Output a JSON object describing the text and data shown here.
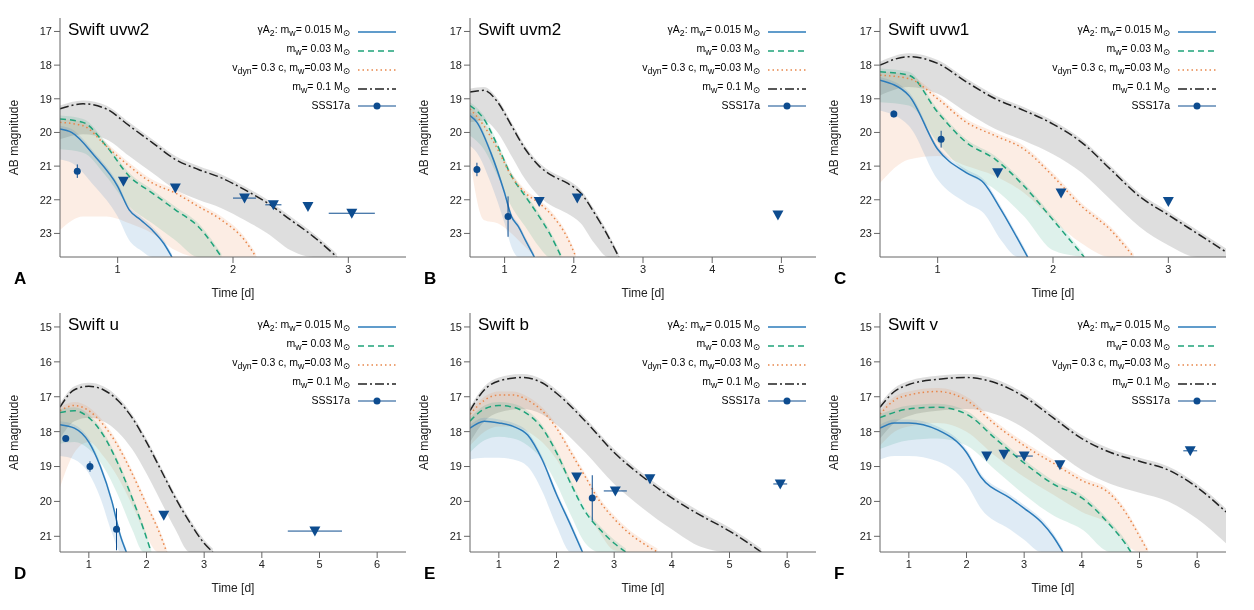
{
  "chart_data": [
    {
      "type": "line",
      "title": "Swift uvw2",
      "xlabel": "Time [d]",
      "ylabel": "AB magnitude",
      "xlim": [
        0.5,
        3.5
      ],
      "xticks": [
        1,
        2,
        3
      ],
      "ylim": [
        23.7,
        16.6
      ],
      "yticks": [
        17,
        18,
        19,
        20,
        21,
        22,
        23
      ],
      "legend": "top right",
      "annotations": [
        "A"
      ],
      "series": [
        {
          "type": "line",
          "name": "γA$_{2}$: m$_{w}$= 0.015 M$_{⊙}$",
          "color": "#2b7bba",
          "line_style": "solid",
          "marker": "none",
          "x": [
            0.5,
            0.6,
            0.8,
            1.0,
            1.1,
            1.2,
            1.3,
            1.4,
            1.47
          ],
          "values": [
            19.9,
            20.0,
            20.7,
            21.6,
            22.3,
            22.6,
            22.9,
            23.3,
            23.7
          ],
          "lower": [
            19.8,
            19.9,
            20.6,
            21.5,
            22.2,
            22.5,
            22.8,
            23.2,
            23.6
          ],
          "upper": [
            20.8,
            20.9,
            21.6,
            22.5,
            23.2,
            23.5,
            23.7,
            23.7,
            23.7
          ]
        },
        {
          "type": "line",
          "name": "m$_{w}$= 0.03 M$_{⊙}$",
          "color": "#1fa37a",
          "line_style": "dashed",
          "marker": "none",
          "x": [
            0.5,
            0.7,
            0.9,
            1.1,
            1.3,
            1.5,
            1.7,
            1.9
          ],
          "values": [
            19.6,
            19.7,
            20.4,
            21.3,
            21.8,
            22.3,
            22.8,
            23.7
          ],
          "lower": [
            19.5,
            19.6,
            20.3,
            21.2,
            21.7,
            22.2,
            22.7,
            23.6
          ],
          "upper": [
            20.5,
            20.6,
            21.3,
            22.2,
            22.7,
            23.2,
            23.7,
            23.7
          ]
        },
        {
          "type": "line",
          "name": "v$_{dyn}$= 0.3 c, m$_{w}$=0.03 M$_{⊙}$",
          "color": "#e8864a",
          "line_style": "dotted",
          "marker": "none",
          "x": [
            0.5,
            0.7,
            0.9,
            1.1,
            1.3,
            1.5,
            1.7,
            1.9,
            2.1,
            2.2
          ],
          "values": [
            19.7,
            19.8,
            20.4,
            21.0,
            21.5,
            21.8,
            22.2,
            22.6,
            23.2,
            23.7
          ],
          "lower": [
            19.6,
            19.7,
            20.3,
            20.9,
            21.4,
            21.7,
            22.1,
            22.5,
            23.1,
            23.6
          ],
          "upper": [
            22.9,
            22.5,
            22.5,
            22.7,
            23.0,
            23.5,
            23.7,
            23.7,
            23.7,
            23.7
          ]
        },
        {
          "type": "line",
          "name": "m$_{w}$= 0.1 M$_{⊙}$",
          "color": "#222222",
          "line_style": "dashdot",
          "marker": "none",
          "x": [
            0.5,
            0.7,
            0.9,
            1.1,
            1.3,
            1.5,
            1.7,
            1.9,
            2.1,
            2.3,
            2.5,
            2.7,
            2.9
          ],
          "values": [
            19.3,
            19.15,
            19.3,
            19.8,
            20.3,
            20.8,
            21.1,
            21.35,
            21.7,
            22.1,
            22.6,
            23.1,
            23.7
          ],
          "lower": [
            19.2,
            19.05,
            19.2,
            19.7,
            20.2,
            20.7,
            21.0,
            21.25,
            21.6,
            22.0,
            22.5,
            23.0,
            23.6
          ],
          "upper": [
            20.2,
            20.05,
            20.2,
            20.7,
            21.2,
            21.7,
            22.0,
            22.25,
            22.6,
            23.0,
            23.5,
            23.7,
            23.7
          ]
        },
        {
          "type": "scatter",
          "name": "SSS17a",
          "color": "#0d4c8f",
          "marker": "circle",
          "x": [
            0.65
          ],
          "values": [
            21.15
          ],
          "errors": [
            0.2
          ]
        },
        {
          "type": "scatter",
          "color": "#0d4c8f",
          "marker": "triangle",
          "x": [
            1.05,
            1.5,
            2.1,
            2.35,
            2.65,
            3.03
          ],
          "values": [
            21.45,
            21.65,
            21.95,
            22.15,
            22.2,
            22.4
          ],
          "xerrors": [
            null,
            null,
            0.1,
            0.07,
            null,
            0.2
          ]
        }
      ]
    },
    {
      "type": "line",
      "title": "Swift uvm2",
      "xlabel": "Time [d]",
      "ylabel": "AB magnitude",
      "xlim": [
        0.5,
        5.5
      ],
      "xticks": [
        1,
        2,
        3,
        4,
        5
      ],
      "ylim": [
        23.7,
        16.6
      ],
      "yticks": [
        17,
        18,
        19,
        20,
        21,
        22,
        23
      ],
      "legend": "top right",
      "annotations": [
        "B"
      ],
      "series": [
        {
          "type": "line",
          "name": "γA$_{2}$: m$_{w}$= 0.015 M$_{⊙}$",
          "color": "#2b7bba",
          "line_style": "solid",
          "marker": "none",
          "x": [
            0.5,
            0.6,
            0.8,
            1.0,
            1.1,
            1.2,
            1.3,
            1.43
          ],
          "values": [
            19.5,
            19.7,
            20.6,
            21.8,
            22.5,
            22.8,
            23.2,
            23.7
          ],
          "lower": [
            19.4,
            19.6,
            20.5,
            21.7,
            22.4,
            22.7,
            23.1,
            23.6
          ],
          "upper": [
            20.4,
            20.6,
            21.5,
            22.7,
            23.4,
            23.7,
            23.7,
            23.7
          ]
        },
        {
          "type": "line",
          "name": "m$_{w}$= 0.03 M$_{⊙}$",
          "color": "#1fa37a",
          "line_style": "dashed",
          "marker": "none",
          "x": [
            0.5,
            0.7,
            0.9,
            1.1,
            1.3,
            1.5,
            1.65,
            1.82
          ],
          "values": [
            19.2,
            19.6,
            20.4,
            21.3,
            21.9,
            22.5,
            23.0,
            23.7
          ],
          "lower": [
            19.1,
            19.5,
            20.3,
            21.2,
            21.8,
            22.4,
            22.9,
            23.6
          ],
          "upper": [
            20.1,
            20.5,
            21.3,
            22.2,
            22.8,
            23.4,
            23.7,
            23.7
          ]
        },
        {
          "type": "line",
          "name": "v$_{dyn}$= 0.3 c, m$_{w}$=0.03 M$_{⊙}$",
          "color": "#e8864a",
          "line_style": "dotted",
          "marker": "none",
          "x": [
            0.5,
            0.7,
            0.9,
            1.1,
            1.3,
            1.5,
            1.7,
            1.9,
            2.03
          ],
          "values": [
            19.3,
            19.8,
            20.5,
            21.3,
            21.8,
            22.1,
            22.5,
            23.1,
            23.7
          ],
          "lower": [
            19.2,
            19.7,
            20.4,
            21.2,
            21.7,
            22.0,
            22.4,
            23.0,
            23.6
          ],
          "upper": [
            20.8,
            22.6,
            22.7,
            23.0,
            23.4,
            23.7,
            23.7,
            23.7,
            23.7
          ]
        },
        {
          "type": "line",
          "name": "m$_{w}$= 0.1 M$_{⊙}$",
          "color": "#222222",
          "line_style": "dashdot",
          "marker": "none",
          "x": [
            0.5,
            0.7,
            0.9,
            1.1,
            1.3,
            1.5,
            1.7,
            1.9,
            2.1,
            2.3,
            2.5,
            2.65
          ],
          "values": [
            18.8,
            18.75,
            19.1,
            19.8,
            20.5,
            21.0,
            21.3,
            21.5,
            21.8,
            22.4,
            23.1,
            23.7
          ],
          "lower": [
            18.7,
            18.65,
            19.0,
            19.7,
            20.4,
            20.9,
            21.2,
            21.4,
            21.7,
            22.3,
            23.0,
            23.6
          ],
          "upper": [
            19.7,
            19.65,
            20.0,
            20.7,
            21.4,
            21.9,
            22.2,
            22.4,
            22.7,
            23.3,
            23.7,
            23.7
          ]
        },
        {
          "type": "scatter",
          "name": "SSS17a",
          "color": "#0d4c8f",
          "marker": "circle",
          "x": [
            0.6,
            1.05
          ],
          "values": [
            21.1,
            22.5
          ],
          "errors": [
            0.2,
            0.6
          ]
        },
        {
          "type": "scatter",
          "color": "#0d4c8f",
          "marker": "triangle",
          "x": [
            1.5,
            2.05,
            4.95
          ],
          "values": [
            22.05,
            21.95,
            22.45
          ]
        }
      ]
    },
    {
      "type": "line",
      "title": "Swift uvw1",
      "xlabel": "Time [d]",
      "ylabel": "AB magnitude",
      "xlim": [
        0.5,
        3.5
      ],
      "xticks": [
        1,
        2,
        3
      ],
      "ylim": [
        23.7,
        16.6
      ],
      "yticks": [
        17,
        18,
        19,
        20,
        21,
        22,
        23
      ],
      "legend": "top right",
      "annotations": [
        "C"
      ],
      "series": [
        {
          "type": "line",
          "name": "γA$_{2}$: m$_{w}$= 0.015 M$_{⊙}$",
          "color": "#2b7bba",
          "line_style": "solid",
          "marker": "none",
          "x": [
            0.5,
            0.75,
            1.0,
            1.25,
            1.4,
            1.55,
            1.7,
            1.78
          ],
          "values": [
            18.45,
            18.9,
            20.5,
            21.2,
            21.5,
            22.3,
            23.2,
            23.7
          ],
          "lower": [
            18.35,
            18.8,
            20.4,
            21.1,
            21.4,
            22.2,
            23.1,
            23.6
          ],
          "upper": [
            19.35,
            19.8,
            21.4,
            22.1,
            22.4,
            23.2,
            23.7,
            23.7
          ]
        },
        {
          "type": "line",
          "name": "m$_{w}$= 0.03 M$_{⊙}$",
          "color": "#1fa37a",
          "line_style": "dashed",
          "marker": "none",
          "x": [
            0.5,
            0.75,
            1.0,
            1.25,
            1.5,
            1.75,
            2.0,
            2.27
          ],
          "values": [
            18.2,
            18.3,
            19.4,
            20.3,
            20.8,
            21.6,
            22.6,
            23.7
          ],
          "lower": [
            18.1,
            18.2,
            19.3,
            20.2,
            20.7,
            21.5,
            22.5,
            23.6
          ],
          "upper": [
            19.1,
            19.2,
            20.3,
            21.2,
            21.7,
            22.5,
            23.5,
            23.7
          ]
        },
        {
          "type": "line",
          "name": "v$_{dyn}$= 0.3 c, m$_{w}$=0.03 M$_{⊙}$",
          "color": "#e8864a",
          "line_style": "dotted",
          "marker": "none",
          "x": [
            0.5,
            0.75,
            1.0,
            1.25,
            1.5,
            1.75,
            2.0,
            2.25,
            2.5,
            2.7
          ],
          "values": [
            18.3,
            18.4,
            19.0,
            19.7,
            20.1,
            20.5,
            21.3,
            22.2,
            22.9,
            23.7
          ],
          "lower": [
            18.2,
            18.3,
            18.9,
            19.6,
            20.0,
            20.4,
            21.2,
            22.1,
            22.8,
            23.6
          ],
          "upper": [
            21.5,
            20.8,
            20.7,
            21.0,
            21.3,
            21.8,
            22.6,
            23.3,
            23.7,
            23.7
          ]
        },
        {
          "type": "line",
          "name": "m$_{w}$= 0.1 M$_{⊙}$",
          "color": "#222222",
          "line_style": "dashdot",
          "marker": "none",
          "x": [
            0.5,
            0.75,
            1.0,
            1.25,
            1.5,
            1.75,
            2.0,
            2.25,
            2.5,
            2.75,
            3.0,
            3.25,
            3.5
          ],
          "values": [
            18.0,
            17.75,
            17.95,
            18.5,
            19.0,
            19.35,
            19.75,
            20.3,
            21.1,
            21.9,
            22.45,
            23.0,
            23.55
          ],
          "lower": [
            17.9,
            17.65,
            17.85,
            18.4,
            18.9,
            19.25,
            19.65,
            20.2,
            21.0,
            21.8,
            22.35,
            22.9,
            23.45
          ],
          "upper": [
            18.9,
            18.65,
            18.85,
            19.4,
            19.9,
            20.25,
            20.65,
            21.2,
            22.0,
            22.8,
            23.35,
            23.7,
            23.7
          ]
        },
        {
          "type": "scatter",
          "name": "SSS17a",
          "color": "#0d4c8f",
          "marker": "circle",
          "x": [
            0.62,
            1.03
          ],
          "values": [
            19.45,
            20.2
          ],
          "errors": [
            0.1,
            0.25
          ]
        },
        {
          "type": "scatter",
          "color": "#0d4c8f",
          "marker": "triangle",
          "x": [
            1.52,
            2.07,
            3.0
          ],
          "values": [
            21.2,
            21.8,
            22.05
          ]
        }
      ]
    },
    {
      "type": "line",
      "title": "Swift u",
      "xlabel": "Time [d]",
      "ylabel": "AB magnitude",
      "xlim": [
        0.5,
        6.5
      ],
      "xticks": [
        1,
        2,
        3,
        4,
        5,
        6
      ],
      "ylim": [
        21.45,
        14.6
      ],
      "yticks": [
        15,
        16,
        17,
        18,
        19,
        20,
        21
      ],
      "legend": "top right",
      "annotations": [
        "D"
      ],
      "series": [
        {
          "type": "line",
          "name": "γA$_{2}$: m$_{w}$= 0.015 M$_{⊙}$",
          "color": "#2b7bba",
          "line_style": "solid",
          "marker": "none",
          "x": [
            0.5,
            0.75,
            1.0,
            1.2,
            1.4,
            1.55,
            1.65
          ],
          "values": [
            17.8,
            17.9,
            18.3,
            19.0,
            20.0,
            21.0,
            21.45
          ],
          "lower": [
            17.7,
            17.8,
            18.2,
            18.9,
            19.9,
            20.9,
            21.35
          ],
          "upper": [
            18.7,
            18.8,
            19.2,
            19.9,
            20.9,
            21.45,
            21.45
          ]
        },
        {
          "type": "line",
          "name": "m$_{w}$= 0.03 M$_{⊙}$",
          "color": "#1fa37a",
          "line_style": "dashed",
          "marker": "none",
          "x": [
            0.5,
            0.75,
            1.0,
            1.25,
            1.5,
            1.75,
            1.95,
            2.08
          ],
          "values": [
            17.45,
            17.4,
            17.6,
            18.1,
            18.9,
            19.9,
            20.8,
            21.45
          ],
          "lower": [
            17.35,
            17.3,
            17.5,
            18.0,
            18.8,
            19.8,
            20.7,
            21.35
          ],
          "upper": [
            18.35,
            18.3,
            18.5,
            19.0,
            19.8,
            20.8,
            21.45,
            21.45
          ]
        },
        {
          "type": "line",
          "name": "v$_{dyn}$= 0.3 c, m$_{w}$=0.03 M$_{⊙}$",
          "color": "#e8864a",
          "line_style": "dotted",
          "marker": "none",
          "x": [
            0.5,
            0.75,
            1.0,
            1.25,
            1.5,
            1.75,
            2.0,
            2.2,
            2.35
          ],
          "values": [
            17.4,
            17.25,
            17.4,
            17.8,
            18.4,
            19.2,
            20.1,
            20.8,
            21.45
          ],
          "lower": [
            17.3,
            17.15,
            17.3,
            17.7,
            18.3,
            19.1,
            20.0,
            20.7,
            21.35
          ],
          "upper": [
            19.6,
            18.6,
            18.3,
            18.7,
            19.3,
            20.1,
            21.0,
            21.45,
            21.45
          ]
        },
        {
          "type": "line",
          "name": "m$_{w}$= 0.1 M$_{⊙}$",
          "color": "#222222",
          "line_style": "dashdot",
          "marker": "none",
          "x": [
            0.5,
            0.75,
            1.0,
            1.25,
            1.5,
            1.75,
            2.0,
            2.25,
            2.5,
            2.75,
            3.0,
            3.15
          ],
          "values": [
            17.3,
            16.8,
            16.7,
            16.8,
            17.1,
            17.6,
            18.3,
            19.1,
            19.9,
            20.6,
            21.2,
            21.45
          ],
          "lower": [
            17.2,
            16.7,
            16.6,
            16.7,
            17.0,
            17.5,
            18.2,
            19.0,
            19.8,
            20.5,
            21.1,
            21.35
          ],
          "upper": [
            18.2,
            17.7,
            17.6,
            17.7,
            18.0,
            18.5,
            19.2,
            20.0,
            20.8,
            21.45,
            21.45,
            21.45
          ]
        },
        {
          "type": "scatter",
          "name": "SSS17a",
          "color": "#0d4c8f",
          "marker": "circle",
          "x": [
            0.6,
            1.02,
            1.48
          ],
          "values": [
            18.2,
            19.0,
            20.8
          ],
          "errors": [
            null,
            0.15,
            0.6
          ]
        },
        {
          "type": "scatter",
          "color": "#0d4c8f",
          "marker": "triangle",
          "x": [
            2.3,
            4.92
          ],
          "values": [
            20.4,
            20.85
          ],
          "xerrors": [
            null,
            0.47
          ]
        }
      ]
    },
    {
      "type": "line",
      "title": "Swift b",
      "xlabel": "Time [d]",
      "ylabel": "AB magnitude",
      "xlim": [
        0.5,
        6.5
      ],
      "xticks": [
        1,
        2,
        3,
        4,
        5,
        6
      ],
      "ylim": [
        21.45,
        14.6
      ],
      "yticks": [
        15,
        16,
        17,
        18,
        19,
        20,
        21
      ],
      "legend": "top right",
      "annotations": [
        "E"
      ],
      "series": [
        {
          "type": "line",
          "name": "γA$_{2}$: m$_{w}$= 0.015 M$_{⊙}$",
          "color": "#2b7bba",
          "line_style": "solid",
          "marker": "none",
          "x": [
            0.5,
            0.75,
            1.0,
            1.25,
            1.5,
            1.75,
            2.0,
            2.25,
            2.45
          ],
          "values": [
            17.9,
            17.7,
            17.75,
            17.85,
            18.1,
            18.8,
            19.8,
            20.7,
            21.45
          ],
          "lower": [
            17.8,
            17.6,
            17.65,
            17.75,
            18.0,
            18.7,
            19.7,
            20.6,
            21.35
          ],
          "upper": [
            18.8,
            18.75,
            18.75,
            18.8,
            19.0,
            19.7,
            20.7,
            21.45,
            21.45
          ]
        },
        {
          "type": "line",
          "name": "m$_{w}$= 0.03 M$_{⊙}$",
          "color": "#1fa37a",
          "line_style": "dashed",
          "marker": "none",
          "x": [
            0.5,
            0.75,
            1.0,
            1.25,
            1.5,
            1.75,
            2.0,
            2.25,
            2.5,
            2.75,
            3.0,
            3.2
          ],
          "values": [
            17.7,
            17.35,
            17.25,
            17.3,
            17.5,
            17.9,
            18.6,
            19.5,
            20.3,
            20.8,
            21.2,
            21.45
          ],
          "lower": [
            17.6,
            17.25,
            17.15,
            17.2,
            17.4,
            17.8,
            18.5,
            19.4,
            20.2,
            20.7,
            21.1,
            21.35
          ],
          "upper": [
            18.6,
            18.25,
            18.15,
            18.2,
            18.4,
            18.8,
            19.5,
            20.4,
            21.2,
            21.45,
            21.45,
            21.45
          ]
        },
        {
          "type": "line",
          "name": "v$_{dyn}$= 0.3 c, m$_{w}$=0.03 M$_{⊙}$",
          "color": "#e8864a",
          "line_style": "dotted",
          "marker": "none",
          "x": [
            0.5,
            0.75,
            1.0,
            1.25,
            1.5,
            1.75,
            2.0,
            2.25,
            2.5,
            2.75,
            3.0,
            3.25,
            3.5,
            3.75
          ],
          "values": [
            17.5,
            17.1,
            16.95,
            16.95,
            17.1,
            17.4,
            17.9,
            18.6,
            19.3,
            20.0,
            20.5,
            20.9,
            21.2,
            21.45
          ],
          "lower": [
            17.4,
            17.0,
            16.85,
            16.85,
            17.0,
            17.3,
            17.8,
            18.5,
            19.2,
            19.9,
            20.4,
            20.8,
            21.1,
            21.35
          ],
          "upper": [
            18.4,
            18.0,
            17.85,
            17.85,
            18.0,
            18.3,
            18.8,
            19.5,
            20.2,
            20.9,
            21.4,
            21.45,
            21.45,
            21.45
          ]
        },
        {
          "type": "line",
          "name": "m$_{w}$= 0.1 M$_{⊙}$",
          "color": "#222222",
          "line_style": "dashdot",
          "marker": "none",
          "x": [
            0.5,
            0.75,
            1.0,
            1.4,
            1.75,
            2.0,
            2.5,
            3.0,
            3.5,
            4.0,
            4.5,
            5.0,
            5.55
          ],
          "values": [
            17.4,
            16.8,
            16.55,
            16.45,
            16.6,
            16.9,
            17.7,
            18.6,
            19.3,
            19.9,
            20.4,
            20.85,
            21.45
          ],
          "lower": [
            17.3,
            16.7,
            16.45,
            16.35,
            16.5,
            16.8,
            17.6,
            18.5,
            19.2,
            19.8,
            20.3,
            20.75,
            21.35
          ],
          "upper": [
            18.3,
            17.7,
            17.45,
            17.35,
            17.5,
            17.8,
            18.6,
            19.5,
            20.2,
            20.8,
            21.3,
            21.45,
            21.45
          ]
        },
        {
          "type": "scatter",
          "name": "SSS17a",
          "color": "#0d4c8f",
          "marker": "circle",
          "x": [
            2.62
          ],
          "values": [
            19.9
          ],
          "errors": [
            0.65
          ]
        },
        {
          "type": "scatter",
          "color": "#0d4c8f",
          "marker": "triangle",
          "x": [
            2.35,
            3.02,
            3.62,
            5.88
          ],
          "values": [
            19.3,
            19.7,
            19.35,
            19.5
          ],
          "xerrors": [
            null,
            0.2,
            null,
            0.12
          ]
        }
      ]
    },
    {
      "type": "line",
      "title": "Swift v",
      "xlabel": "Time [d]",
      "ylabel": "AB magnitude",
      "xlim": [
        0.5,
        6.5
      ],
      "xticks": [
        1,
        2,
        3,
        4,
        5,
        6
      ],
      "ylim": [
        21.45,
        14.6
      ],
      "yticks": [
        15,
        16,
        17,
        18,
        19,
        20,
        21
      ],
      "legend": "top right",
      "annotations": [
        "F"
      ],
      "series": [
        {
          "type": "line",
          "name": "γA$_{2}$: m$_{w}$= 0.015 M$_{⊙}$",
          "color": "#2b7bba",
          "line_style": "solid",
          "marker": "none",
          "x": [
            0.5,
            0.75,
            1.0,
            1.5,
            2.0,
            2.25,
            2.75,
            3.0,
            3.3,
            3.5,
            3.67
          ],
          "values": [
            17.9,
            17.75,
            17.75,
            17.95,
            18.6,
            19.3,
            19.9,
            20.2,
            20.6,
            21.0,
            21.45
          ],
          "lower": [
            17.8,
            17.65,
            17.65,
            17.85,
            18.5,
            19.2,
            19.8,
            20.1,
            20.5,
            20.9,
            21.35
          ],
          "upper": [
            18.8,
            18.7,
            18.7,
            18.85,
            19.5,
            20.2,
            20.8,
            21.1,
            21.45,
            21.45,
            21.45
          ]
        },
        {
          "type": "line",
          "name": "m$_{w}$= 0.03 M$_{⊙}$",
          "color": "#1fa37a",
          "line_style": "dashed",
          "marker": "none",
          "x": [
            0.5,
            1.0,
            1.5,
            2.0,
            2.5,
            3.0,
            3.5,
            4.0,
            4.5,
            4.75,
            4.85
          ],
          "values": [
            17.6,
            17.35,
            17.3,
            17.5,
            18.2,
            18.9,
            19.5,
            19.9,
            20.7,
            21.2,
            21.45
          ],
          "lower": [
            17.5,
            17.25,
            17.2,
            17.4,
            18.1,
            18.8,
            19.4,
            19.8,
            20.6,
            21.1,
            21.35
          ],
          "upper": [
            18.5,
            18.25,
            18.2,
            18.4,
            19.1,
            19.8,
            20.4,
            20.8,
            21.45,
            21.45,
            21.45
          ]
        },
        {
          "type": "line",
          "name": "v$_{dyn}$= 0.3 c, m$_{w}$=0.03 M$_{⊙}$",
          "color": "#e8864a",
          "line_style": "dotted",
          "marker": "none",
          "x": [
            0.5,
            0.75,
            1.0,
            1.5,
            2.0,
            2.5,
            3.0,
            3.5,
            4.0,
            4.5,
            4.75,
            5.0,
            5.15
          ],
          "values": [
            17.5,
            17.1,
            16.95,
            16.85,
            17.1,
            17.8,
            18.4,
            18.9,
            19.4,
            19.8,
            20.3,
            21.0,
            21.45
          ],
          "lower": [
            17.4,
            17.0,
            16.85,
            16.75,
            17.0,
            17.7,
            18.3,
            18.8,
            19.3,
            19.7,
            20.2,
            20.9,
            21.35
          ],
          "upper": [
            18.4,
            18.0,
            17.85,
            17.75,
            18.0,
            18.7,
            19.3,
            19.8,
            20.3,
            20.7,
            21.2,
            21.45,
            21.45
          ]
        },
        {
          "type": "line",
          "name": "m$_{w}$= 0.1 M$_{⊙}$",
          "color": "#222222",
          "line_style": "dashdot",
          "marker": "none",
          "x": [
            0.5,
            0.75,
            1.0,
            1.5,
            2.0,
            2.5,
            3.0,
            3.5,
            4.0,
            4.5,
            5.0,
            5.5,
            6.0,
            6.5
          ],
          "values": [
            17.3,
            16.85,
            16.65,
            16.5,
            16.45,
            16.6,
            17.0,
            17.6,
            18.2,
            18.6,
            18.85,
            19.1,
            19.6,
            20.3
          ],
          "lower": [
            17.2,
            16.75,
            16.55,
            16.4,
            16.35,
            16.5,
            16.9,
            17.5,
            18.1,
            18.5,
            18.75,
            19.0,
            19.5,
            20.2
          ],
          "upper": [
            18.2,
            17.75,
            17.55,
            17.4,
            17.35,
            17.5,
            17.9,
            18.5,
            19.1,
            19.5,
            19.75,
            20.0,
            20.5,
            21.2
          ]
        },
        {
          "type": "scatter",
          "name": "SSS17a",
          "color": "#0d4c8f",
          "marker": "circle"
        },
        {
          "type": "scatter",
          "color": "#0d4c8f",
          "marker": "triangle",
          "x": [
            2.35,
            2.65,
            3.0,
            3.62,
            5.88
          ],
          "values": [
            18.7,
            18.65,
            18.7,
            18.95,
            18.55
          ],
          "xerrors": [
            null,
            null,
            0.15,
            null,
            0.12
          ]
        }
      ]
    }
  ]
}
